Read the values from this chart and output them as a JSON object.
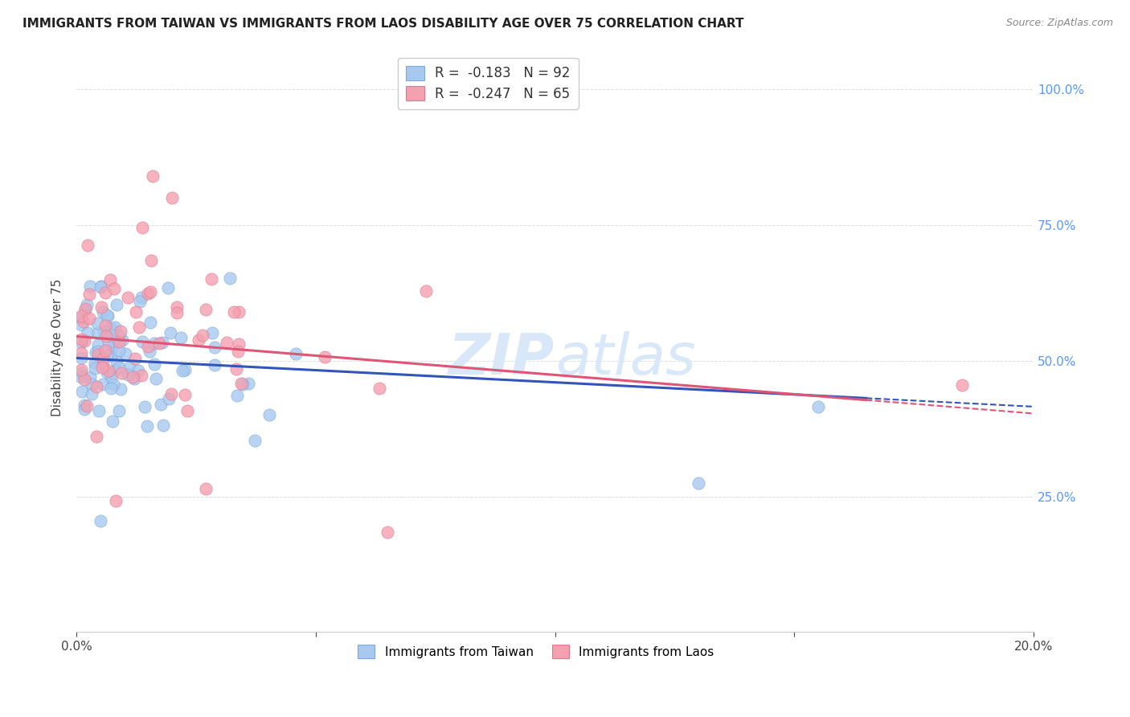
{
  "title": "IMMIGRANTS FROM TAIWAN VS IMMIGRANTS FROM LAOS DISABILITY AGE OVER 75 CORRELATION CHART",
  "source": "Source: ZipAtlas.com",
  "ylabel": "Disability Age Over 75",
  "xmin": 0.0,
  "xmax": 0.2,
  "ymin": 0.0,
  "ymax": 1.05,
  "taiwan_color": "#a8c8f0",
  "taiwan_edge_color": "#7aaad8",
  "laos_color": "#f4a0b0",
  "laos_edge_color": "#e07890",
  "taiwan_R": -0.183,
  "taiwan_N": 92,
  "laos_R": -0.247,
  "laos_N": 65,
  "taiwan_line_color": "#3355bb",
  "laos_line_color": "#e05575",
  "background_color": "#ffffff",
  "grid_color": "#dddddd",
  "right_yaxis_color": "#5599ff",
  "watermark_color": "#d8e8f8",
  "legend_r_color": "#cc0055",
  "legend_n_color": "#3366cc"
}
